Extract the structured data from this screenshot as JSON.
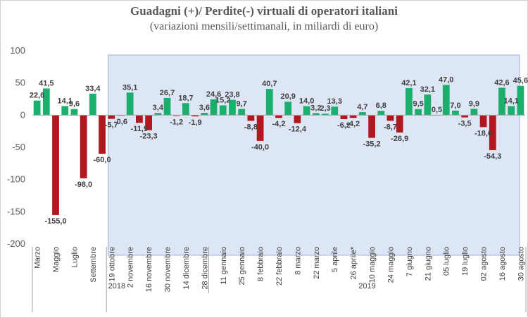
{
  "chart_data": {
    "type": "bar",
    "title": "Guadagni (+)/ Perdite(-) virtuali di operatori italiani",
    "subtitle": "(variazioni mensili/settimanali, in miliardi di euro)",
    "ylim": [
      -200,
      100
    ],
    "yticks": [
      100,
      50,
      0,
      -50,
      -100,
      -150,
      -200
    ],
    "values": [
      22.6,
      41.5,
      -155.0,
      14.1,
      9.6,
      -98.0,
      33.4,
      -60.0,
      -5.7,
      -0.6,
      35.1,
      -11.9,
      -23.3,
      3.4,
      26.7,
      -1.2,
      18.7,
      -1.9,
      3.6,
      24.6,
      15.2,
      23.8,
      9.7,
      -8.8,
      -40.0,
      40.7,
      -4.2,
      20.9,
      -12.4,
      14.0,
      3.2,
      2.3,
      13.3,
      -6.2,
      -4.2,
      4.7,
      -35.2,
      6.8,
      -8.7,
      -26.9,
      42.1,
      9.5,
      32.1,
      0.5,
      47.0,
      7.0,
      -3.5,
      9.9,
      -18.6,
      -54.3,
      42.6,
      14.1,
      45.6
    ],
    "data_labels": [
      "22,6",
      "41,5",
      "-155,0",
      "14,1",
      "9,6",
      "-98,0",
      "33,4",
      "-60,0",
      "-5,7",
      "-0,6",
      "35,1",
      "-11,9",
      "-23,3",
      "3,4",
      "26,7",
      "-1,2",
      "18,7",
      "-1,9",
      "3,6",
      "24,6",
      "15,2",
      "23,8",
      "9,7",
      "-8,8",
      "-40,0",
      "40,7",
      "-4,2",
      "20,9",
      "-12,4",
      "14,0",
      "3,2",
      "2,3",
      "13,3",
      "-6,2",
      "-4,2",
      "4,7",
      "-35,2",
      "6,8",
      "-8,7",
      "-26,9",
      "42,1",
      "9,5",
      "32,1",
      "0,5",
      "47,0",
      "7,0",
      "-3,5",
      "9,9",
      "-18,6",
      "-54,3",
      "42,6",
      "14,1",
      "45,6"
    ],
    "category_labels": [
      {
        "index": 0,
        "text": "Marzo"
      },
      {
        "index": 2,
        "text": "Maggio"
      },
      {
        "index": 4,
        "text": "Luglio"
      },
      {
        "index": 6,
        "text": "Settembre"
      },
      {
        "index": 8,
        "text": "19 ottobre"
      },
      {
        "index": 10,
        "text": "2 novembre"
      },
      {
        "index": 12,
        "text": "16 novembre"
      },
      {
        "index": 14,
        "text": "30 novembre"
      },
      {
        "index": 16,
        "text": "14 dicembre"
      },
      {
        "index": 18,
        "text": "28 dicembre"
      },
      {
        "index": 20,
        "text": "11 gennaio"
      },
      {
        "index": 22,
        "text": "25 gennaio"
      },
      {
        "index": 24,
        "text": "8 febbraio"
      },
      {
        "index": 26,
        "text": "22 febbraio"
      },
      {
        "index": 28,
        "text": "8 marzo"
      },
      {
        "index": 30,
        "text": "22 marzo"
      },
      {
        "index": 32,
        "text": "5 aprile"
      },
      {
        "index": 34,
        "text": "26 aprile*"
      },
      {
        "index": 36,
        "text": "10 maggio"
      },
      {
        "index": 38,
        "text": "24 maggio"
      },
      {
        "index": 40,
        "text": "7 giugno"
      },
      {
        "index": 42,
        "text": "21 giugno"
      },
      {
        "index": 44,
        "text": "05 luglio"
      },
      {
        "index": 46,
        "text": "19 luglio"
      },
      {
        "index": 48,
        "text": "02 agosto"
      },
      {
        "index": 50,
        "text": "16 agosto"
      },
      {
        "index": 52,
        "text": "30 agosto"
      }
    ],
    "year_groups": [
      {
        "label": "2018",
        "start": 8,
        "end": 18
      },
      {
        "label": "2019",
        "start": 19,
        "end": 52
      }
    ],
    "highlight_start_index": 8,
    "colors": {
      "positive": "#1aaf6c",
      "negative": "#b3161f",
      "highlight_band": "#dce6f4",
      "highlight_border": "#9db3d6",
      "axis": "#a6a6a6"
    }
  }
}
